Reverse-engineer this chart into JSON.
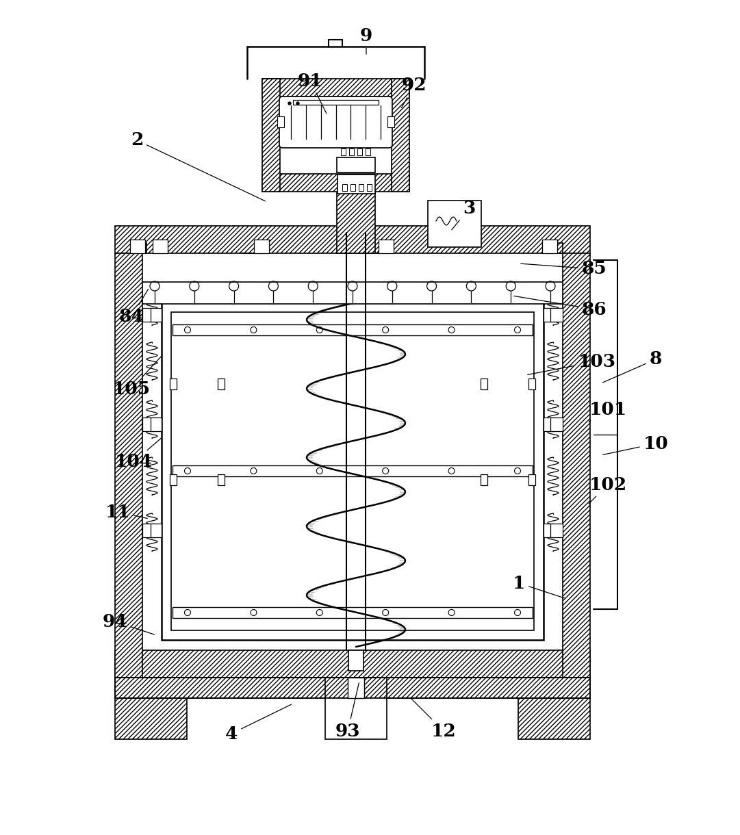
{
  "bg_color": "#ffffff",
  "line_color": "#000000",
  "fig_width": 10.81,
  "fig_height": 12.2,
  "labels_data": [
    [
      "9",
      535,
      52,
      535,
      82
    ],
    [
      "91",
      453,
      118,
      478,
      168
    ],
    [
      "92",
      605,
      125,
      585,
      160
    ],
    [
      "2",
      200,
      205,
      390,
      295
    ],
    [
      "3",
      685,
      305,
      658,
      338
    ],
    [
      "85",
      868,
      393,
      758,
      385
    ],
    [
      "86",
      868,
      452,
      748,
      432
    ],
    [
      "84",
      192,
      463,
      218,
      420
    ],
    [
      "8",
      958,
      525,
      878,
      560
    ],
    [
      "105",
      192,
      568,
      238,
      518
    ],
    [
      "103",
      872,
      528,
      768,
      548
    ],
    [
      "104",
      195,
      675,
      238,
      638
    ],
    [
      "101",
      888,
      598,
      858,
      618
    ],
    [
      "10",
      958,
      648,
      878,
      665
    ],
    [
      "102",
      888,
      708,
      858,
      738
    ],
    [
      "11",
      172,
      748,
      218,
      758
    ],
    [
      "1",
      758,
      852,
      828,
      875
    ],
    [
      "94",
      168,
      908,
      228,
      928
    ],
    [
      "4",
      338,
      1072,
      428,
      1028
    ],
    [
      "93",
      508,
      1068,
      525,
      995
    ],
    [
      "12",
      648,
      1068,
      598,
      1018
    ]
  ]
}
